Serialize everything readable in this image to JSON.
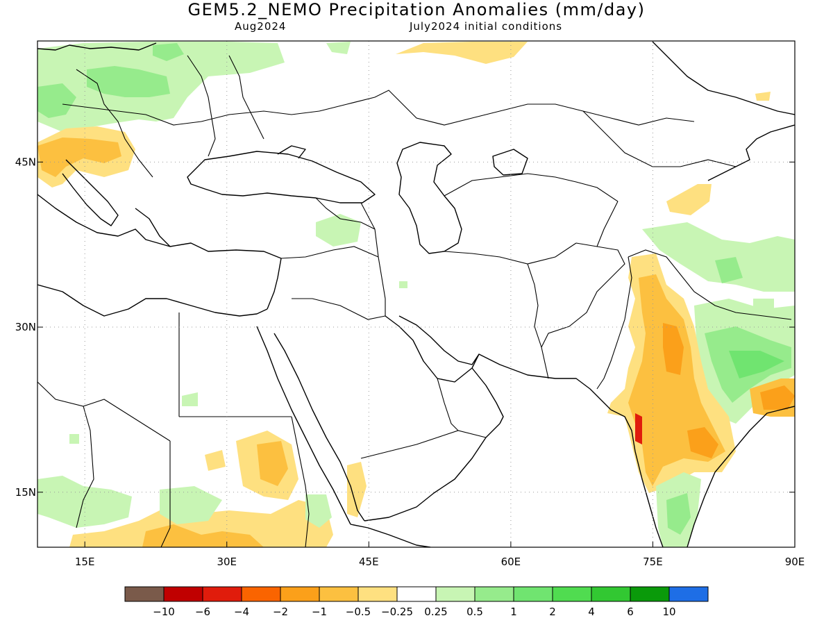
{
  "title": "GEM5.2_NEMO Precipitation Anomalies (mm/day)",
  "subtitle_left": "Aug2024",
  "subtitle_right": "July2024 initial conditions",
  "map": {
    "lon_range": [
      10,
      90
    ],
    "lat_range": [
      10,
      56
    ],
    "grid": "dotted",
    "lat_ticks": [
      {
        "value": 45,
        "label": "45N"
      },
      {
        "value": 30,
        "label": "30N"
      },
      {
        "value": 15,
        "label": "15N"
      }
    ],
    "lon_ticks": [
      {
        "value": 15,
        "label": "15E"
      },
      {
        "value": 30,
        "label": "30E"
      },
      {
        "value": 45,
        "label": "45E"
      },
      {
        "value": 60,
        "label": "60E"
      },
      {
        "value": 75,
        "label": "75E"
      },
      {
        "value": 90,
        "label": "90E"
      }
    ]
  },
  "colorbar": {
    "colors": [
      "#7a5a4a",
      "#c00000",
      "#e01c0c",
      "#fa6400",
      "#fba01a",
      "#fcc040",
      "#fee080",
      "#ffffff",
      "#c8f5b4",
      "#96eb8c",
      "#70e470",
      "#50dc50",
      "#32c832",
      "#0a9a0a",
      "#1e6ee6"
    ],
    "labels": [
      "−10",
      "−6",
      "−4",
      "−2",
      "−1",
      "−0.5",
      "−0.25",
      "0.25",
      "0.5",
      "1",
      "2",
      "4",
      "6",
      "10"
    ]
  },
  "colors": {
    "coast": "#000000",
    "grid": "#999999"
  }
}
